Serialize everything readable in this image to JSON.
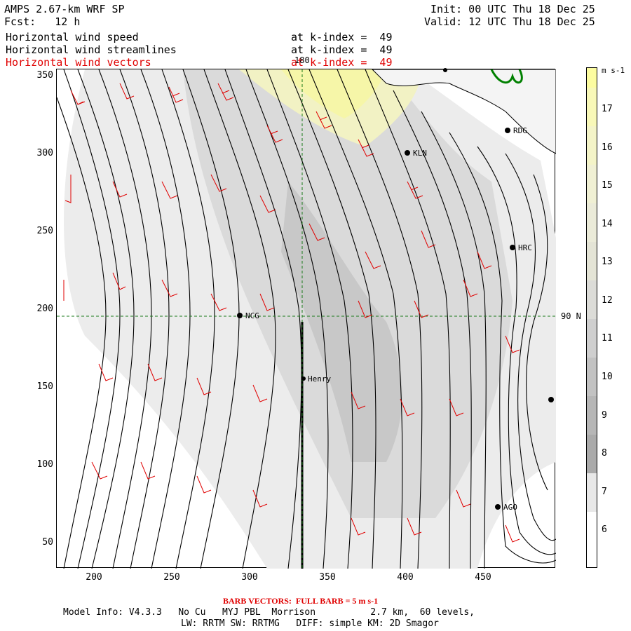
{
  "header": {
    "model": "AMPS 2.67-km WRF SP",
    "fcst": "Fcst:   12 h",
    "init": "Init: 00 UTC Thu 18 Dec 25",
    "valid": "Valid: 12 UTC Thu 18 Dec 25",
    "rows": [
      {
        "label": "Horizontal wind speed",
        "level": "at k-index =  49"
      },
      {
        "label": "Horizontal wind streamlines",
        "level": "at k-index =  49"
      },
      {
        "label": "Horizontal wind vectors",
        "level": "at k-index =  49"
      }
    ]
  },
  "map": {
    "y_ticks": [
      "350",
      "300",
      "250",
      "200",
      "150",
      "100",
      "50"
    ],
    "x_ticks": [
      "200",
      "250",
      "300",
      "350",
      "400",
      "450"
    ],
    "meridian_label": "180",
    "parallel_label": "90 N",
    "stations": [
      "KLN",
      "RDG",
      "HRC",
      "NCG",
      "Henry",
      "AGO"
    ]
  },
  "colorbar": {
    "units": "m s-1",
    "ticks": [
      "17",
      "16",
      "15",
      "14",
      "13",
      "12",
      "11",
      "10",
      "9",
      "8",
      "7",
      "6"
    ],
    "colors": [
      "#fcfca0",
      "#f8f8b8",
      "#f4f4c8",
      "#f0f0d4",
      "#ebebd9",
      "#e4e4d6",
      "#dcdcd8",
      "#cfcfcf",
      "#c2c2c2",
      "#b6b6b6",
      "#aaaaaa",
      "#e8e8e8",
      "#ffffff"
    ]
  },
  "footer": {
    "barb": "BARB VECTORS:  FULL BARB = 5 m s-1",
    "line1": "Model Info: V4.3.3   No Cu   MYJ PBL  Morrison          2.7 km,  60 levels,",
    "line2": "LW: RRTM SW: RRTMG   DIFF: simple KM: 2D Smagor"
  }
}
